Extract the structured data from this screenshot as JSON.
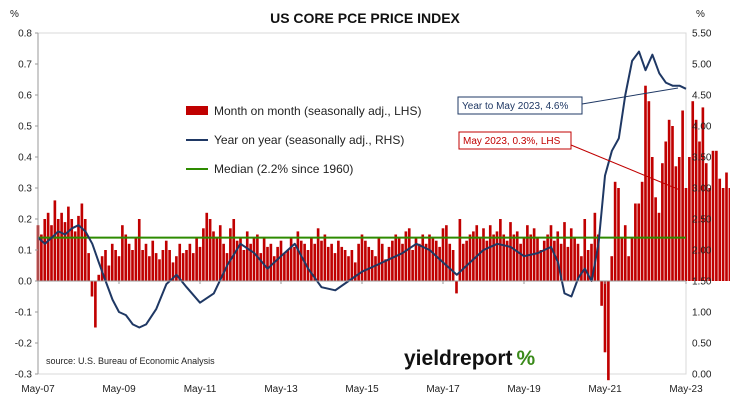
{
  "chart_data": {
    "type": "bar",
    "title": "US CORE PCE PRICE INDEX",
    "left_axis": {
      "unit": "%",
      "ylim": [
        -0.3,
        0.8
      ],
      "ticks": [
        "-0.3",
        "-0.2",
        "-0.1",
        "0.0",
        "0.1",
        "0.2",
        "0.3",
        "0.4",
        "0.5",
        "0.6",
        "0.7",
        "0.8"
      ]
    },
    "right_axis": {
      "unit": "%",
      "ylim": [
        0.0,
        5.5
      ],
      "ticks": [
        "0.00",
        "0.50",
        "1.00",
        "1.50",
        "2.00",
        "2.50",
        "3.00",
        "3.50",
        "4.00",
        "4.50",
        "5.00",
        "5.50"
      ]
    },
    "x_ticks": [
      "May-07",
      "May-09",
      "May-11",
      "May-13",
      "May-15",
      "May-17",
      "May-19",
      "May-21",
      "May-23"
    ],
    "x_range": [
      2007.33,
      2023.33
    ],
    "legend": [
      {
        "label": "Month on month (seasonally adj., LHS)",
        "color": "#c00000",
        "symbol": "bar"
      },
      {
        "label": "Year on year (seasonally adj., RHS)",
        "color": "#1f3864",
        "symbol": "line"
      },
      {
        "label": "Median (2.2% since 1960)",
        "color": "#2e8b00",
        "symbol": "line"
      }
    ],
    "annotations": [
      {
        "text": "Year to May 2023, 4.6%",
        "color": "#1f3864"
      },
      {
        "text": "May 2023, 0.3%, LHS",
        "color": "#c00000"
      }
    ],
    "median": {
      "value": 2.2,
      "axis": "right",
      "color": "#2e8b00"
    },
    "series": [
      {
        "name": "Month on month (seasonally adj., LHS)",
        "type": "bar",
        "axis": "left",
        "color": "#c00000",
        "yearly_values": [
          [
            0.18,
            0.15,
            0.2,
            0.22,
            0.18,
            0.26,
            0.2,
            0.22
          ],
          [
            0.19,
            0.24,
            0.2,
            0.16,
            0.21,
            0.25,
            0.2,
            0.09,
            -0.05,
            -0.15,
            0.02,
            0.08,
            0.1
          ],
          [
            0.05,
            0.12,
            0.1,
            0.08,
            0.18,
            0.15,
            0.12,
            0.1,
            0.14,
            0.2,
            0.1,
            0.12
          ],
          [
            0.08,
            0.13,
            0.09,
            0.07,
            0.1,
            0.13,
            0.1,
            0.06,
            0.08,
            0.12,
            0.09,
            0.1
          ],
          [
            0.12,
            0.09,
            0.14,
            0.11,
            0.17,
            0.22,
            0.2,
            0.16,
            0.14,
            0.18,
            0.12,
            0.09
          ],
          [
            0.17,
            0.2,
            0.13,
            0.14,
            0.1,
            0.16,
            0.12,
            0.14,
            0.15,
            0.09,
            0.14,
            0.11
          ],
          [
            0.12,
            0.08,
            0.11,
            0.13,
            0.09,
            0.1,
            0.14,
            0.11,
            0.16,
            0.13,
            0.12,
            0.1
          ],
          [
            0.14,
            0.12,
            0.17,
            0.13,
            0.15,
            0.11,
            0.12,
            0.09,
            0.13,
            0.11,
            0.1,
            0.08
          ],
          [
            0.1,
            0.06,
            0.12,
            0.15,
            0.13,
            0.11,
            0.1,
            0.08,
            0.14,
            0.12,
            0.07,
            0.11
          ],
          [
            0.13,
            0.15,
            0.14,
            0.12,
            0.16,
            0.17,
            0.1,
            0.14,
            0.12,
            0.15,
            0.12,
            0.15
          ],
          [
            0.14,
            0.13,
            0.11,
            0.17,
            0.18,
            0.12,
            0.1,
            -0.04,
            0.2,
            0.12,
            0.13,
            0.15
          ],
          [
            0.16,
            0.18,
            0.14,
            0.17,
            0.13,
            0.18,
            0.15,
            0.16,
            0.2,
            0.15,
            0.13,
            0.19
          ],
          [
            0.15,
            0.16,
            0.12,
            0.14,
            0.18,
            0.15,
            0.17,
            0.14,
            0.1,
            0.13,
            0.15,
            0.18
          ],
          [
            0.13,
            0.16,
            0.12,
            0.19,
            0.11,
            0.17,
            0.14,
            0.12,
            0.08,
            0.2,
            0.1,
            0.12
          ],
          [
            0.22,
            0.15,
            -0.08,
            -0.23,
            -0.32,
            0.08,
            0.32,
            0.3,
            0.14,
            0.18,
            0.08,
            0.14
          ],
          [
            0.25,
            0.25,
            0.32,
            0.63,
            0.58,
            0.4,
            0.27,
            0.22,
            0.38,
            0.45,
            0.52,
            0.5
          ],
          [
            0.37,
            0.4,
            0.55,
            0.3,
            0.4,
            0.58,
            0.52,
            0.45,
            0.56,
            0.38,
            0.3,
            0.42
          ],
          [
            0.42,
            0.33,
            0.3,
            0.35,
            0.3
          ]
        ]
      },
      {
        "name": "Year on year (seasonally adj., RHS)",
        "type": "line",
        "axis": "right",
        "color": "#1f3864",
        "x": [
          2007.33,
          2007.5,
          2007.67,
          2007.83,
          2008.0,
          2008.17,
          2008.33,
          2008.5,
          2008.67,
          2008.83,
          2009.0,
          2009.17,
          2009.33,
          2009.5,
          2009.67,
          2009.83,
          2010.0,
          2010.25,
          2010.5,
          2010.75,
          2011.0,
          2011.33,
          2011.67,
          2012.0,
          2012.33,
          2012.67,
          2013.0,
          2013.33,
          2013.67,
          2014.0,
          2014.33,
          2014.67,
          2015.0,
          2015.33,
          2015.67,
          2016.0,
          2016.33,
          2016.67,
          2017.0,
          2017.33,
          2017.67,
          2018.0,
          2018.33,
          2018.67,
          2019.0,
          2019.33,
          2019.67,
          2020.0,
          2020.17,
          2020.33,
          2020.5,
          2020.67,
          2020.83,
          2021.0,
          2021.17,
          2021.33,
          2021.5,
          2021.67,
          2021.83,
          2022.0,
          2022.17,
          2022.33,
          2022.5,
          2022.67,
          2022.83,
          2023.0,
          2023.17,
          2023.33
        ],
        "y": [
          2.2,
          2.1,
          2.2,
          2.3,
          2.25,
          2.35,
          2.4,
          2.3,
          2.1,
          1.8,
          1.5,
          1.2,
          1.0,
          0.95,
          0.8,
          0.75,
          0.8,
          1.05,
          1.45,
          1.6,
          1.4,
          1.15,
          1.3,
          1.75,
          2.1,
          1.95,
          1.7,
          1.9,
          2.1,
          1.7,
          1.4,
          1.35,
          1.5,
          1.65,
          1.75,
          1.85,
          1.95,
          2.1,
          2.0,
          1.8,
          1.6,
          1.8,
          2.0,
          2.1,
          2.05,
          1.9,
          1.95,
          2.05,
          1.8,
          1.3,
          1.25,
          1.55,
          1.7,
          1.5,
          2.1,
          3.2,
          3.6,
          3.8,
          4.5,
          5.05,
          5.2,
          4.9,
          5.15,
          4.85,
          4.7,
          4.65,
          4.65,
          4.6
        ]
      }
    ]
  },
  "source_text": "source: U.S. Bureau of Economic Analysis",
  "brand": {
    "main": "yieldreport",
    "pct": "%"
  }
}
